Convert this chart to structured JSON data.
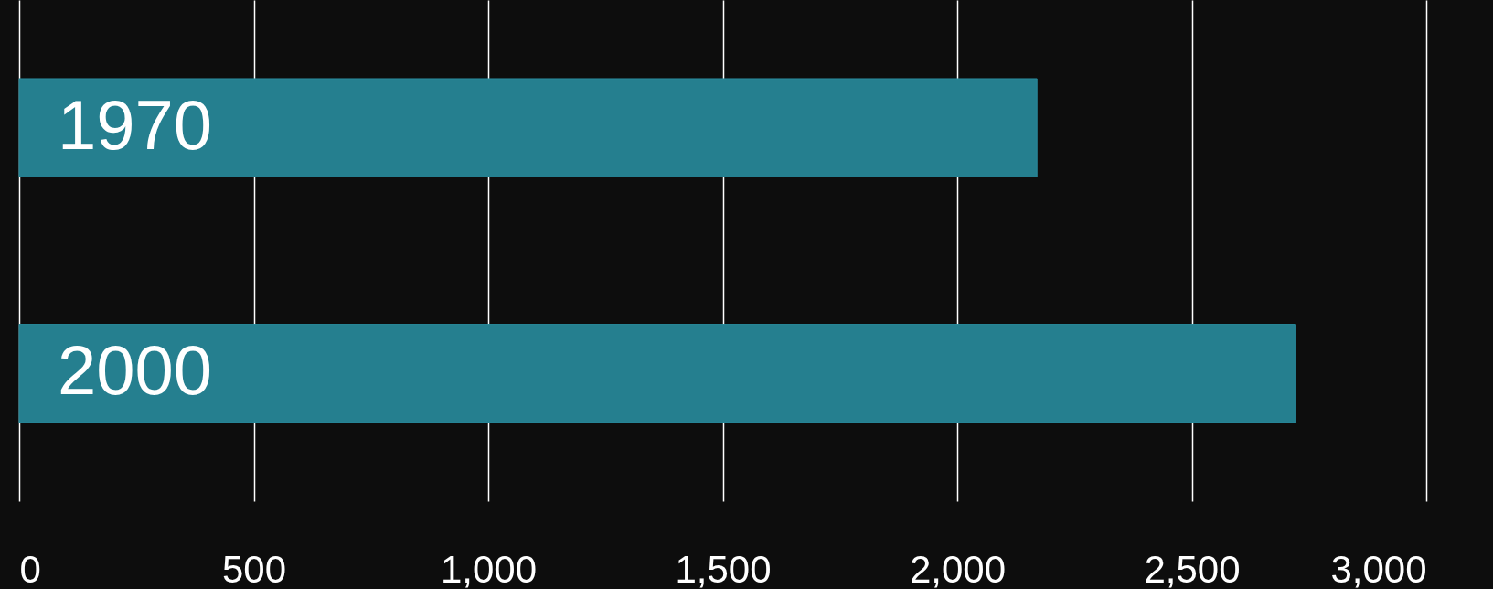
{
  "chart_data": {
    "type": "bar",
    "orientation": "horizontal",
    "categories": [
      "1970",
      "2000"
    ],
    "values": [
      2170,
      2720
    ],
    "color": "#257f8f",
    "xlim": [
      0,
      3000
    ],
    "xticks": [
      0,
      500,
      {
        "value": 1000,
        "label": "1,000"
      },
      {
        "value": 1500,
        "label": "1,500"
      },
      {
        "value": 2000,
        "label": "2,000"
      },
      {
        "value": 2500,
        "label": "2,500"
      },
      {
        "value": 3000,
        "label": "3,000"
      }
    ],
    "grid": "x"
  }
}
